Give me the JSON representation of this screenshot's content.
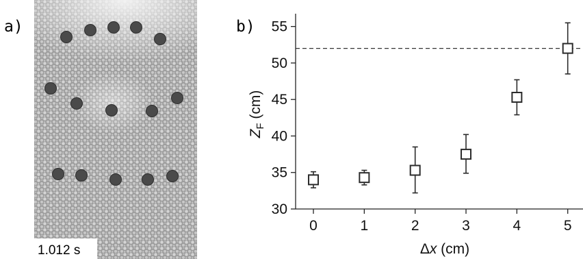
{
  "panel_a": {
    "label": "a)",
    "timestamp": "1.012 s",
    "colors": {
      "background": "#a9a9a9",
      "bright_region": "#e8e8e8",
      "intruder": "#4a4a4a"
    }
  },
  "panel_b": {
    "label": "b)"
  },
  "chart_data": {
    "type": "scatter",
    "marker": "open-square",
    "x": [
      0,
      1,
      2,
      3,
      4,
      5
    ],
    "y": [
      34,
      34.3,
      35.3,
      37.5,
      45.3,
      52
    ],
    "y_err_low": [
      1.1,
      1.0,
      3.1,
      2.6,
      2.4,
      3.5
    ],
    "y_err_high": [
      1.1,
      1.0,
      3.2,
      2.7,
      2.4,
      3.5
    ],
    "xlabel": "Δx (cm)",
    "ylabel": "Z_F (cm)",
    "ylabel_parts": {
      "main": "Z",
      "sub": "F",
      "unit": " (cm)"
    },
    "xlabel_parts": {
      "greek": "Δ",
      "var": "x",
      "unit": " (cm)"
    },
    "xlim": [
      -0.35,
      5.3
    ],
    "ylim": [
      30,
      56
    ],
    "xticks": [
      0,
      1,
      2,
      3,
      4,
      5
    ],
    "yticks": [
      30,
      35,
      40,
      45,
      50,
      55
    ],
    "reference_line": {
      "y": 52,
      "style": "dashed"
    },
    "grid": false,
    "colors": {
      "marker": "#2b2b2b",
      "axis": "#222222",
      "reference_line": "#333333"
    }
  }
}
